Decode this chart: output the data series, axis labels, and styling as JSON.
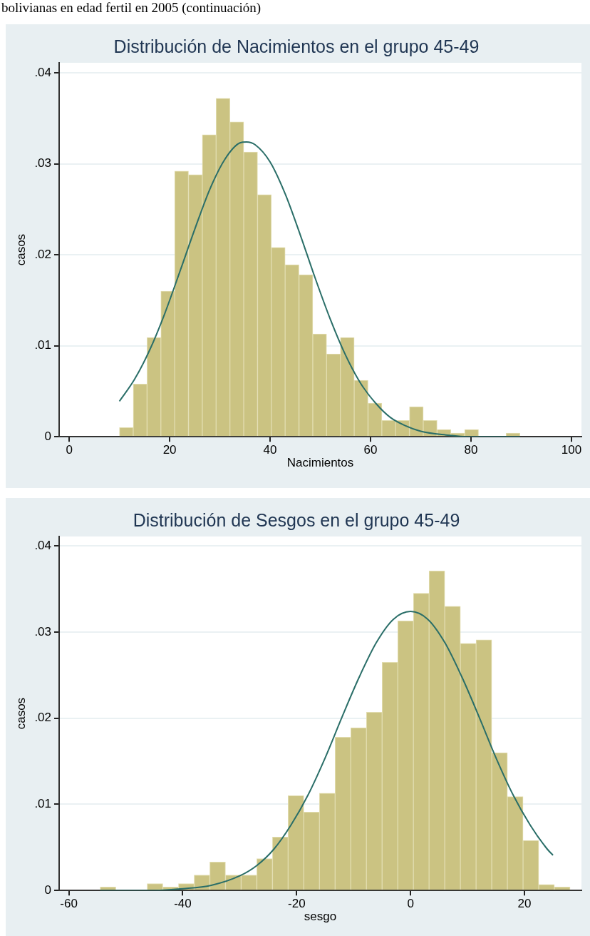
{
  "chart_data": [
    {
      "type": "histogram",
      "title": "Distribución de Nacimientos en el grupo 45-49",
      "xlabel": "Nacimientos",
      "ylabel": "casos",
      "annotations": [
        "bolivianas en edad fertil en 2005 (continuación)"
      ],
      "bins": [
        10,
        12.75,
        15.5,
        18.25,
        21,
        23.75,
        26.5,
        29.25,
        32,
        34.75,
        37.5,
        40.25,
        43,
        45.75,
        48.5,
        51.25,
        54,
        56.75,
        59.5,
        62.25,
        65,
        67.75,
        70.5,
        73.25,
        76,
        78.75,
        81.5,
        84.25,
        87,
        89.75
      ],
      "series": [
        {
          "color": "#cbc382",
          "values": [
            0.001,
            0.0058,
            0.0109,
            0.016,
            0.0292,
            0.0288,
            0.0332,
            0.0372,
            0.0346,
            0.0313,
            0.0266,
            0.0208,
            0.0189,
            0.0178,
            0.0113,
            0.0091,
            0.0109,
            0.0062,
            0.0037,
            0.0018,
            0.0018,
            0.0033,
            0.0018,
            0.0008,
            0.0004,
            0.0008,
            0,
            0,
            0.0004
          ]
        },
        {
          "type": "line",
          "color": "#2a6e68",
          "x": [
            10,
            13,
            16,
            19,
            22,
            25,
            28,
            31,
            34,
            35.3,
            37,
            40,
            43,
            46,
            49,
            52,
            55,
            58,
            61,
            64,
            67,
            70,
            75,
            80,
            85,
            89.75
          ],
          "values": [
            0.0039,
            0.0063,
            0.0095,
            0.0135,
            0.0181,
            0.0228,
            0.0272,
            0.0305,
            0.0323,
            0.0324,
            0.0321,
            0.0302,
            0.0267,
            0.0222,
            0.0174,
            0.0129,
            0.009,
            0.0059,
            0.0037,
            0.0021,
            0.0012,
            0.0006,
            0.0002,
            0,
            0,
            0
          ]
        }
      ],
      "xlim": [
        -2,
        102
      ],
      "xticks": [
        0,
        20,
        40,
        60,
        80,
        100
      ],
      "ylim": [
        0,
        0.0411
      ],
      "yticks": [
        0,
        {
          "value": 0.01,
          "label": ".01"
        },
        {
          "value": 0.02,
          "label": ".02"
        },
        {
          "value": 0.03,
          "label": ".03"
        },
        {
          "value": 0.04,
          "label": ".04"
        }
      ],
      "grid": "y"
    },
    {
      "type": "histogram",
      "title": "Distribución de Sesgos en el grupo 45-49",
      "xlabel": "sesgo",
      "ylabel": "casos",
      "bins": [
        -54.5,
        -51.75,
        -49,
        -46.25,
        -43.5,
        -40.75,
        -38,
        -35.25,
        -32.5,
        -29.75,
        -27,
        -24.25,
        -21.5,
        -18.75,
        -16,
        -13.25,
        -10.5,
        -7.75,
        -5,
        -2.25,
        0.5,
        3.25,
        6,
        8.75,
        11.5,
        14.25,
        17,
        19.75,
        22.5,
        25.25,
        28
      ],
      "series": [
        {
          "color": "#cbc382",
          "values": [
            0.0004,
            0,
            0,
            0.0008,
            0.0004,
            0.0008,
            0.0018,
            0.0033,
            0.0018,
            0.0018,
            0.0037,
            0.0062,
            0.011,
            0.0091,
            0.0113,
            0.0178,
            0.0189,
            0.0207,
            0.0265,
            0.0313,
            0.0345,
            0.0371,
            0.033,
            0.0287,
            0.0291,
            0.016,
            0.0109,
            0.0058,
            0.0007,
            0.0004
          ]
        },
        {
          "type": "line",
          "color": "#2a6e68",
          "x": [
            -54.5,
            -50,
            -45,
            -40,
            -35,
            -30,
            -27,
            -24,
            -21,
            -18,
            -15,
            -12,
            -9,
            -6,
            -3,
            0,
            3,
            6,
            9,
            12,
            15,
            18,
            21,
            24,
            25
          ],
          "values": [
            0,
            0,
            0,
            0.0002,
            0.0006,
            0.0017,
            0.0029,
            0.0048,
            0.0076,
            0.0111,
            0.0154,
            0.0202,
            0.0248,
            0.0288,
            0.0315,
            0.0324,
            0.0315,
            0.0288,
            0.0248,
            0.0202,
            0.0154,
            0.0111,
            0.0076,
            0.0048,
            0.0041
          ]
        }
      ],
      "xlim": [
        -61.7,
        30
      ],
      "xticks": [
        -60,
        -40,
        -20,
        0,
        20
      ],
      "ylim": [
        0,
        0.0411
      ],
      "yticks": [
        0,
        {
          "value": 0.01,
          "label": ".01"
        },
        {
          "value": 0.02,
          "label": ".02"
        },
        {
          "value": 0.03,
          "label": ".03"
        },
        {
          "value": 0.04,
          "label": ".04"
        }
      ],
      "grid": "y"
    }
  ]
}
